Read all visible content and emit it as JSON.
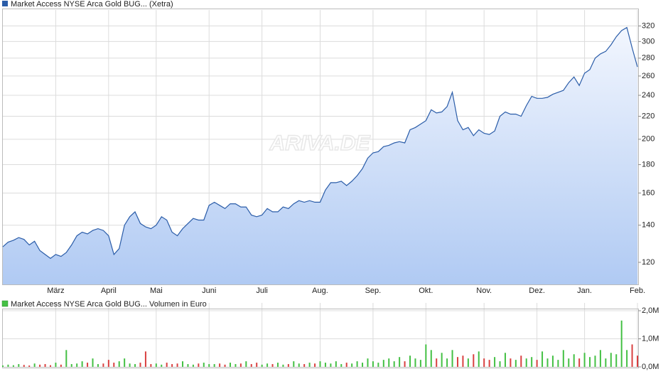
{
  "chart_data": [
    {
      "type": "area",
      "legend": "Market Access NYSE Arca Gold BUG... (Xetra)",
      "watermark": "ARIVA.DE",
      "color": "#2a5ca8",
      "log_scale": true,
      "grid": true,
      "categories": [
        null,
        null,
        null,
        null,
        null,
        null,
        null,
        null,
        null,
        null,
        "März",
        null,
        null,
        null,
        null,
        null,
        null,
        null,
        null,
        null,
        "April",
        null,
        null,
        null,
        null,
        null,
        null,
        null,
        null,
        "Mai",
        null,
        null,
        null,
        null,
        null,
        null,
        null,
        null,
        null,
        "Juni",
        null,
        null,
        null,
        null,
        null,
        null,
        null,
        null,
        null,
        "Juli",
        null,
        null,
        null,
        null,
        null,
        null,
        null,
        null,
        null,
        null,
        "Aug.",
        null,
        null,
        null,
        null,
        null,
        null,
        null,
        null,
        null,
        "Sep.",
        null,
        null,
        null,
        null,
        null,
        null,
        null,
        null,
        null,
        "Okt.",
        null,
        null,
        null,
        null,
        null,
        null,
        null,
        null,
        null,
        null,
        "Nov.",
        null,
        null,
        null,
        null,
        null,
        null,
        null,
        null,
        null,
        "Dez.",
        null,
        null,
        null,
        null,
        null,
        null,
        null,
        null,
        "Jan.",
        null,
        null,
        null,
        null,
        null,
        null,
        null,
        null,
        null,
        "Feb."
      ],
      "values": [
        128,
        130.5,
        131.5,
        133,
        132,
        129,
        131,
        126,
        124,
        122,
        124,
        123,
        125,
        129,
        134,
        136,
        135,
        137,
        138,
        137,
        134,
        124,
        127,
        140,
        145,
        148,
        141,
        139,
        138,
        140,
        145,
        143,
        136,
        134,
        138,
        141,
        144,
        143,
        143,
        152,
        154,
        152,
        150,
        153,
        153,
        151,
        151,
        146,
        145,
        146,
        150,
        148,
        148,
        151,
        150,
        153,
        155,
        154,
        155,
        154,
        154,
        162,
        167,
        167,
        168,
        165,
        168,
        172,
        177,
        185,
        189,
        190,
        194,
        195,
        197,
        198,
        197,
        208,
        210,
        213,
        216,
        226,
        223,
        224,
        229,
        243,
        216,
        208,
        210,
        203,
        208,
        205,
        204,
        207,
        220,
        224,
        222,
        222,
        220,
        230,
        239,
        237,
        237,
        238,
        241,
        243,
        245,
        253,
        259,
        250,
        263,
        267,
        280,
        285,
        288,
        296,
        306,
        314,
        318,
        292,
        270
      ],
      "ylim": [
        109.5,
        342
      ],
      "yticks": [
        120,
        140,
        160,
        180,
        200,
        220,
        240,
        260,
        280,
        300,
        320
      ]
    },
    {
      "type": "bar",
      "legend": "Market Access NYSE Arca Gold BUG... Volumen in Euro",
      "up_color": "#44c044",
      "down_color": "#d94040",
      "legend_color": "#44c044",
      "grid": true,
      "values": [
        0.05,
        0.08,
        0.06,
        0.1,
        0.07,
        0.05,
        0.12,
        0.08,
        0.1,
        0.06,
        0.15,
        0.08,
        0.6,
        0.1,
        0.12,
        0.2,
        0.15,
        0.3,
        0.1,
        0.12,
        0.25,
        0.15,
        0.2,
        0.3,
        0.12,
        0.1,
        0.15,
        0.55,
        0.1,
        0.12,
        0.08,
        0.15,
        0.1,
        0.12,
        0.2,
        0.1,
        0.08,
        0.12,
        0.15,
        0.1,
        0.1,
        0.12,
        0.08,
        0.15,
        0.1,
        0.12,
        0.2,
        0.1,
        0.15,
        0.08,
        0.12,
        0.1,
        0.15,
        0.08,
        0.1,
        0.2,
        0.12,
        0.1,
        0.15,
        0.12,
        0.2,
        0.15,
        0.12,
        0.2,
        0.1,
        0.15,
        0.12,
        0.2,
        0.15,
        0.3,
        0.2,
        0.15,
        0.25,
        0.3,
        0.2,
        0.35,
        0.2,
        0.4,
        0.3,
        0.25,
        0.8,
        0.6,
        0.3,
        0.5,
        0.3,
        0.6,
        0.35,
        0.4,
        0.3,
        0.45,
        0.55,
        0.3,
        0.25,
        0.35,
        0.2,
        0.5,
        0.3,
        0.25,
        0.4,
        0.3,
        0.35,
        0.25,
        0.55,
        0.3,
        0.4,
        0.25,
        0.6,
        0.3,
        0.45,
        0.3,
        0.5,
        0.35,
        0.4,
        0.6,
        0.3,
        0.5,
        0.45,
        1.65,
        0.6,
        0.8,
        0.4
      ],
      "ylim": [
        0,
        2.0
      ],
      "yticks": [
        {
          "value": 0,
          "label": "0,0M"
        },
        {
          "value": 1,
          "label": "1,0M"
        },
        {
          "value": 2,
          "label": "2,0M"
        }
      ]
    }
  ]
}
